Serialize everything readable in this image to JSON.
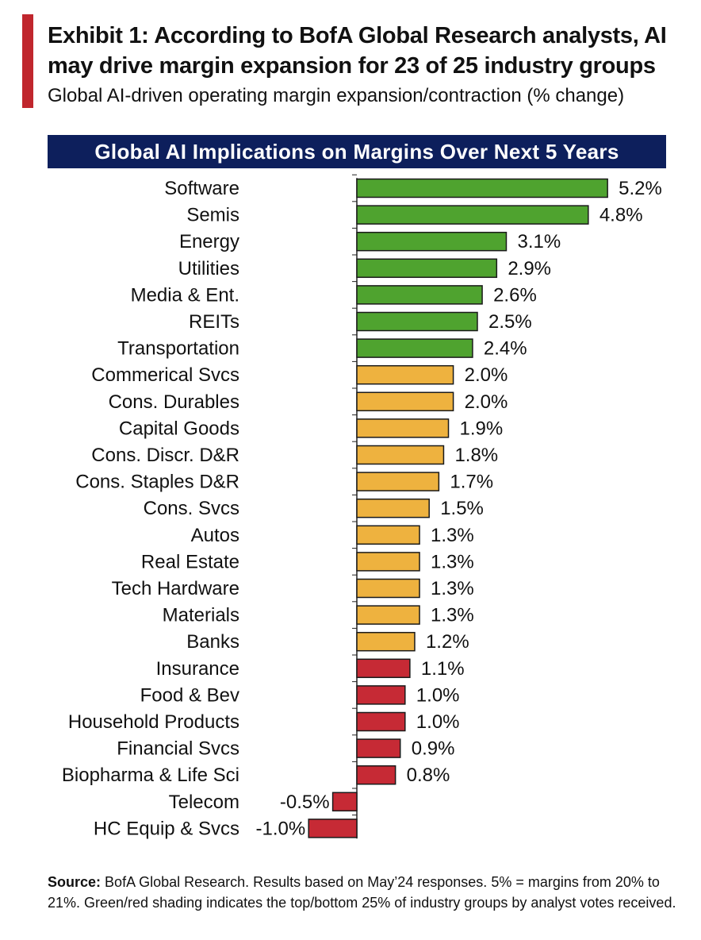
{
  "header": {
    "title": "Exhibit 1: According to BofA Global Research analysts, AI may drive margin expansion for 23 of 25 industry groups",
    "subtitle": "Global AI-driven operating margin expansion/contraction (% change)",
    "banner": "Global AI Implications on Margins Over Next 5 Years"
  },
  "colors": {
    "accent": "#c0262d",
    "banner": "#0d1f5c",
    "green": "#4fa32f",
    "amber": "#eeb23f",
    "red": "#c62a35"
  },
  "chart_data": {
    "type": "bar",
    "orientation": "horizontal",
    "title": "Global AI Implications on Margins Over Next 5 Years",
    "categories": [
      "Software",
      "Semis",
      "Energy",
      "Utilities",
      "Media & Ent.",
      "REITs",
      "Transportation",
      "Commerical Svcs",
      "Cons. Durables",
      "Capital Goods",
      "Cons. Discr. D&R",
      "Cons. Staples D&R",
      "Cons. Svcs",
      "Autos",
      "Real Estate",
      "Tech Hardware",
      "Materials",
      "Banks",
      "Insurance",
      "Food & Bev",
      "Household Products",
      "Financial Svcs",
      "Biopharma & Life Sci",
      "Telecom",
      "HC Equip & Svcs"
    ],
    "values": [
      5.2,
      4.8,
      3.1,
      2.9,
      2.6,
      2.5,
      2.4,
      2.0,
      2.0,
      1.9,
      1.8,
      1.7,
      1.5,
      1.3,
      1.3,
      1.3,
      1.3,
      1.2,
      1.1,
      1.0,
      1.0,
      0.9,
      0.8,
      -0.5,
      -1.0
    ],
    "labels": [
      "5.2%",
      "4.8%",
      "3.1%",
      "2.9%",
      "2.6%",
      "2.5%",
      "2.4%",
      "2.0%",
      "2.0%",
      "1.9%",
      "1.8%",
      "1.7%",
      "1.5%",
      "1.3%",
      "1.3%",
      "1.3%",
      "1.3%",
      "1.2%",
      "1.1%",
      "1.0%",
      "1.0%",
      "0.9%",
      "0.8%",
      "-0.5%",
      "-1.0%"
    ],
    "groups": [
      "green",
      "green",
      "green",
      "green",
      "green",
      "green",
      "green",
      "amber",
      "amber",
      "amber",
      "amber",
      "amber",
      "amber",
      "amber",
      "amber",
      "amber",
      "amber",
      "amber",
      "red",
      "red",
      "red",
      "red",
      "red",
      "red",
      "red"
    ],
    "xlim": [
      -1.0,
      5.2
    ],
    "grid": false,
    "legend": "none"
  },
  "footer": {
    "source_label": "Source:",
    "source_text": "BofA Global Research. Results based on May’24 responses. 5% = margins from 20% to 21%. Green/red shading indicates the top/bottom 25% of industry groups by analyst votes received."
  }
}
